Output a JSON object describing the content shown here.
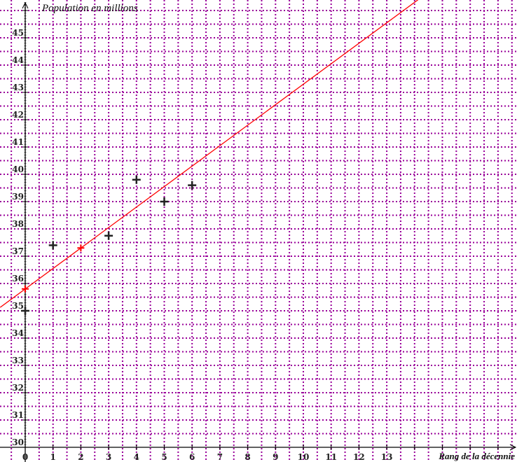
{
  "chart_data": {
    "type": "scatter",
    "ylabel": "Population en millions",
    "xlabel": "Rang de la décennie",
    "xlim": [
      -0.9,
      17.7
    ],
    "ylim": [
      30,
      46.4
    ],
    "x_ticks": [
      0,
      1,
      2,
      3,
      4,
      5,
      6,
      7,
      8,
      9,
      10,
      11,
      12,
      13
    ],
    "y_ticks": [
      30,
      31,
      32,
      33,
      34,
      35,
      36,
      37,
      38,
      39,
      40,
      41,
      42,
      43,
      44,
      45
    ],
    "grid": true,
    "grid_step": 0.5,
    "grid_color": "#990099",
    "points": [
      {
        "x": 0,
        "y": 35
      },
      {
        "x": 1,
        "y": 37.4
      },
      {
        "x": 3,
        "y": 37.75
      },
      {
        "x": 4,
        "y": 39.8
      },
      {
        "x": 5,
        "y": 39
      },
      {
        "x": 6,
        "y": 39.6
      }
    ],
    "points_color": "#222222",
    "highlighted_points": [
      {
        "x": 0,
        "y": 35.8
      },
      {
        "x": 2,
        "y": 37.3
      }
    ],
    "line": {
      "slope": 0.75,
      "intercept": 35.8,
      "color": "#ff0000"
    }
  }
}
